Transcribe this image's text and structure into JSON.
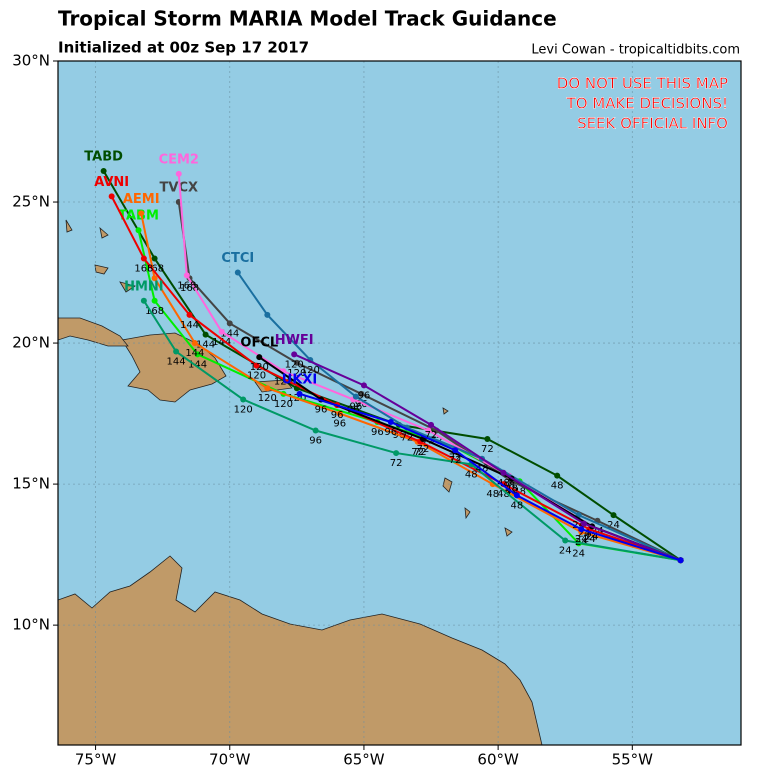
{
  "chart_data": {
    "type": "map",
    "title": "Tropical Storm MARIA Model Track Guidance",
    "subtitle": "Initialized at 00z Sep 17 2017",
    "credit": "Levi Cowan - tropicaltidbits.com",
    "notice": [
      "DO NOT USE THIS MAP",
      "TO MAKE DECISIONS!",
      "SEEK OFFICIAL INFO"
    ],
    "xlim": [
      -76.4,
      -50.95
    ],
    "ylim": [
      5.75,
      30
    ],
    "xticks": [
      {
        "value": -75,
        "label": "75°W"
      },
      {
        "value": -70,
        "label": "70°W"
      },
      {
        "value": -65,
        "label": "65°W"
      },
      {
        "value": -60,
        "label": "60°W"
      },
      {
        "value": -55,
        "label": "55°W"
      }
    ],
    "yticks": [
      {
        "value": 10,
        "label": "10°N"
      },
      {
        "value": 15,
        "label": "15°N"
      },
      {
        "value": 20,
        "label": "20°N"
      },
      {
        "value": 25,
        "label": "25°N"
      },
      {
        "value": 30,
        "label": "30°N"
      }
    ],
    "grid": true,
    "series": [
      {
        "name": "TABD",
        "color": "#004d00",
        "x": [
          -53.2,
          -55.7,
          -57.8,
          -60.4,
          -63.7,
          -67.5,
          -70.9,
          -72.8,
          -74.7
        ],
        "values": [
          12.3,
          13.9,
          15.3,
          16.6,
          17.1,
          18.4,
          20.3,
          23.0,
          26.1
        ],
        "hours": [
          null,
          24,
          48,
          72,
          96,
          120,
          144,
          168,
          null
        ]
      },
      {
        "name": "TABM",
        "color": "#00ee00",
        "x": [
          -53.2,
          -57.0,
          -59.2,
          -61.6,
          -64.5,
          -68.0,
          -71.2,
          -72.8,
          -73.4
        ],
        "values": [
          12.3,
          12.9,
          15.1,
          16.3,
          17.2,
          18.2,
          19.6,
          21.5,
          24.0
        ],
        "hours": [
          null,
          24,
          48,
          72,
          96,
          120,
          144,
          168,
          null
        ]
      },
      {
        "name": "AEMI",
        "color": "#ff6600",
        "x": [
          -53.2,
          -56.9,
          -60.2,
          -63.0,
          -65.9,
          -68.6,
          -71.3,
          -72.8,
          -73.3
        ],
        "values": [
          12.3,
          13.3,
          15.0,
          16.5,
          17.5,
          18.4,
          20.0,
          22.3,
          24.6
        ],
        "hours": [
          null,
          24,
          48,
          72,
          96,
          120,
          144,
          null,
          null
        ]
      },
      {
        "name": "TVCX",
        "color": "#444444",
        "x": [
          -53.2,
          -56.3,
          -59.5,
          -62.3,
          -65.1,
          -67.5,
          -70.0,
          -71.5,
          -71.9
        ],
        "values": [
          12.3,
          13.7,
          15.1,
          16.9,
          18.2,
          19.3,
          20.7,
          22.3,
          25.0
        ],
        "hours": [
          null,
          24,
          48,
          72,
          96,
          120,
          144,
          168,
          null
        ]
      },
      {
        "name": "CEM2",
        "color": "#ff66dd",
        "x": [
          -53.2,
          -56.5,
          -59.6,
          -62.6,
          -65.4,
          -68.0,
          -70.3,
          -71.6,
          -71.9
        ],
        "values": [
          12.3,
          13.5,
          15.3,
          16.9,
          18.0,
          19.0,
          20.4,
          22.4,
          26.0
        ],
        "hours": [
          null,
          24,
          48,
          72,
          96,
          120,
          144,
          168,
          null
        ]
      },
      {
        "name": "AVNI",
        "color": "#ee0000",
        "x": [
          -53.2,
          -56.6,
          -59.8,
          -62.9,
          -66.0,
          -69.0,
          -71.5,
          -73.2,
          -74.4
        ],
        "values": [
          12.3,
          13.4,
          15.0,
          16.5,
          17.8,
          19.2,
          21.0,
          23.0,
          25.2
        ],
        "hours": [
          null,
          24,
          48,
          72,
          96,
          120,
          144,
          168,
          null
        ]
      },
      {
        "name": "HMNI",
        "color": "#009966",
        "x": [
          -53.2,
          -57.5,
          -61.0,
          -63.8,
          -66.8,
          -69.5,
          -72.0,
          -73.2
        ],
        "values": [
          12.3,
          13.0,
          15.7,
          16.1,
          16.9,
          18.0,
          19.7,
          21.5
        ],
        "hours": [
          null,
          24,
          48,
          72,
          96,
          120,
          144,
          null
        ]
      },
      {
        "name": "CTCI",
        "color": "#1a6fa0",
        "x": [
          -53.2,
          -57.0,
          -60.6,
          -63.4,
          -65.3,
          -67.0,
          -68.6,
          -69.7
        ],
        "values": [
          12.3,
          13.9,
          15.9,
          17.0,
          18.1,
          19.4,
          21.0,
          22.5
        ],
        "hours": [
          null,
          24,
          48,
          72,
          96,
          120,
          null,
          null
        ]
      },
      {
        "name": "OFCL",
        "color": "#000000",
        "x": [
          -53.2,
          -56.5,
          -59.5,
          -62.8,
          -66.6,
          -68.9
        ],
        "values": [
          12.3,
          13.5,
          15.2,
          16.6,
          18.0,
          19.5
        ],
        "hours": [
          null,
          24,
          48,
          72,
          96,
          120
        ]
      },
      {
        "name": "HWFI",
        "color": "#660099",
        "x": [
          -53.2,
          -56.8,
          -59.8,
          -62.5,
          -65.0,
          -67.6
        ],
        "values": [
          12.3,
          13.6,
          15.4,
          17.1,
          18.5,
          19.6
        ],
        "hours": [
          null,
          24,
          48,
          72,
          96,
          120
        ]
      },
      {
        "name": "UKXI",
        "color": "#0000ee",
        "x": [
          -53.2,
          -56.9,
          -59.3,
          -61.6,
          -64.0,
          -67.4
        ],
        "values": [
          12.3,
          13.4,
          14.6,
          16.2,
          17.2,
          18.2
        ],
        "hours": [
          null,
          24,
          48,
          72,
          96,
          null
        ]
      }
    ]
  }
}
